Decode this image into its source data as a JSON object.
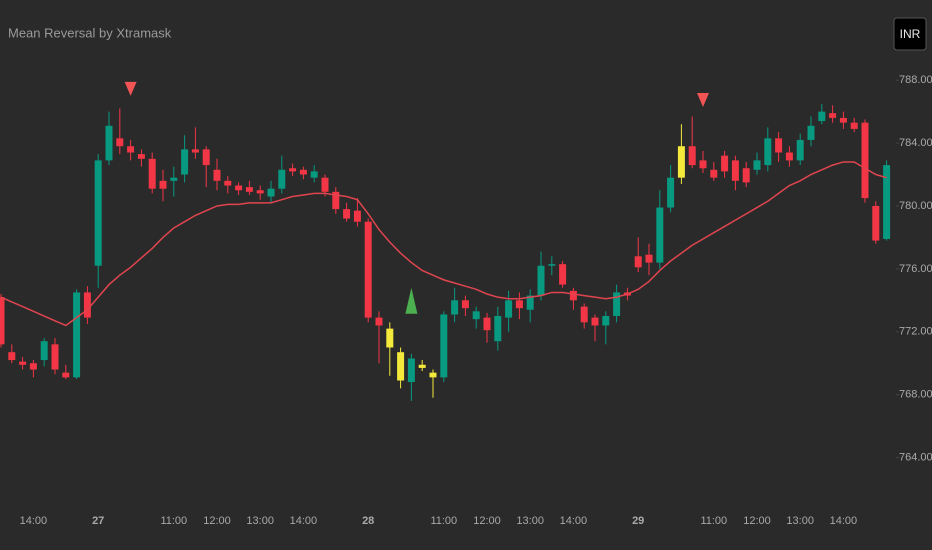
{
  "chart_data": {
    "type": "candlestick",
    "title": "Mean Reversal by Xtramask",
    "categories": [
      null,
      null,
      null,
      "14:00",
      null,
      null,
      null,
      null,
      null,
      "27",
      null,
      null,
      null,
      null,
      null,
      null,
      "11:00",
      null,
      null,
      null,
      "12:00",
      null,
      null,
      null,
      "13:00",
      null,
      null,
      null,
      "14:00",
      null,
      null,
      null,
      null,
      null,
      "28",
      null,
      null,
      null,
      null,
      null,
      null,
      "11:00",
      null,
      null,
      null,
      "12:00",
      null,
      null,
      null,
      "13:00",
      null,
      null,
      null,
      "14:00",
      null,
      null,
      null,
      null,
      null,
      "29",
      null,
      null,
      null,
      null,
      null,
      null,
      "11:00",
      null,
      null,
      null,
      "12:00",
      null,
      null,
      null,
      "13:00",
      null,
      null,
      null,
      "14:00",
      null,
      null,
      null,
      null
    ],
    "open": [
      774.2,
      770.7,
      770.1,
      770.0,
      770.2,
      771.2,
      769.4,
      769.1,
      774.5,
      776.2,
      782.9,
      784.3,
      783.8,
      783.3,
      783.0,
      781.6,
      781.6,
      782.0,
      783.6,
      783.6,
      782.3,
      781.6,
      781.3,
      781.2,
      781.0,
      780.6,
      781.1,
      782.4,
      782.3,
      781.8,
      781.8,
      780.9,
      779.8,
      779.7,
      779.0,
      772.9,
      772.2,
      770.7,
      768.8,
      769.9,
      769.4,
      769.1,
      773.1,
      774.0,
      772.8,
      772.9,
      771.4,
      772.9,
      774.0,
      773.4,
      774.3,
      776.2,
      776.3,
      774.6,
      773.6,
      772.9,
      772.4,
      773.0,
      774.5,
      776.8,
      776.9,
      776.4,
      779.9,
      781.8,
      783.8,
      782.9,
      782.3,
      783.2,
      782.9,
      782.4,
      782.3,
      782.6,
      784.3,
      783.4,
      782.9,
      784.2,
      785.4,
      785.9,
      785.6,
      785.3,
      785.3,
      780.0,
      777.9
    ],
    "high": [
      774.4,
      771.2,
      770.4,
      770.2,
      771.6,
      771.6,
      769.9,
      774.7,
      774.9,
      783.3,
      786.0,
      786.2,
      784.2,
      783.6,
      783.4,
      782.3,
      782.5,
      784.5,
      785.0,
      783.8,
      783.0,
      781.9,
      781.5,
      781.6,
      781.3,
      781.6,
      783.2,
      782.7,
      782.5,
      782.6,
      782.0,
      781.2,
      780.2,
      780.5,
      779.2,
      773.3,
      772.6,
      771.0,
      770.6,
      770.2,
      769.6,
      773.3,
      774.8,
      774.3,
      773.6,
      773.2,
      773.6,
      774.6,
      774.5,
      774.7,
      777.1,
      776.8,
      776.5,
      774.8,
      773.8,
      773.1,
      773.3,
      775.0,
      774.8,
      778.0,
      777.6,
      781.0,
      782.6,
      785.2,
      785.7,
      783.5,
      782.8,
      783.5,
      783.2,
      782.8,
      783.4,
      785.0,
      784.7,
      783.8,
      784.6,
      785.7,
      786.5,
      786.4,
      786.0,
      785.6,
      785.5,
      780.3,
      782.9
    ],
    "low": [
      771.0,
      770.0,
      769.6,
      769.1,
      769.8,
      769.3,
      769.0,
      769.0,
      772.5,
      774.8,
      782.6,
      783.3,
      782.9,
      782.5,
      780.8,
      780.3,
      780.6,
      781.5,
      783.0,
      781.2,
      781.0,
      780.8,
      780.7,
      780.7,
      780.4,
      780.2,
      780.8,
      781.9,
      781.7,
      781.5,
      780.6,
      779.5,
      779.0,
      778.7,
      772.6,
      770.0,
      769.2,
      768.4,
      767.6,
      769.5,
      767.8,
      768.8,
      772.6,
      773.0,
      772.2,
      771.3,
      770.8,
      772.0,
      772.8,
      772.6,
      774.0,
      775.6,
      774.8,
      773.4,
      772.2,
      771.4,
      771.2,
      772.6,
      774.0,
      775.8,
      775.6,
      776.0,
      779.6,
      781.4,
      782.4,
      782.1,
      781.6,
      781.8,
      781.0,
      781.2,
      782.0,
      782.2,
      782.8,
      782.5,
      782.6,
      783.8,
      785.2,
      785.3,
      784.9,
      784.7,
      780.2,
      777.6,
      777.8
    ],
    "close": [
      771.2,
      770.2,
      769.9,
      769.6,
      771.4,
      769.6,
      769.1,
      774.5,
      772.9,
      782.9,
      785.1,
      783.8,
      783.4,
      783.0,
      781.1,
      781.1,
      781.8,
      783.6,
      783.4,
      782.6,
      781.6,
      781.3,
      781.0,
      780.9,
      780.8,
      781.1,
      782.3,
      782.2,
      782.0,
      782.2,
      780.9,
      779.8,
      779.2,
      779.0,
      772.9,
      772.4,
      771.0,
      768.9,
      770.3,
      769.7,
      769.1,
      773.1,
      774.0,
      773.5,
      773.3,
      772.1,
      773.0,
      774.0,
      773.5,
      774.3,
      776.2,
      776.3,
      775.0,
      774.0,
      772.6,
      772.4,
      773.0,
      774.5,
      774.3,
      776.1,
      776.4,
      779.9,
      781.8,
      783.8,
      782.6,
      782.4,
      781.8,
      782.2,
      781.6,
      781.5,
      782.9,
      784.3,
      783.4,
      782.9,
      784.2,
      785.1,
      786.0,
      785.6,
      785.3,
      784.9,
      780.5,
      777.8,
      782.6
    ],
    "up_color": "#089981",
    "down_color": "#f23645",
    "highlight_color": "#f5e93b",
    "highlighted": [
      36,
      37,
      39,
      40,
      63
    ],
    "ma": [
      774.2,
      773.9,
      773.6,
      773.3,
      773.0,
      772.7,
      772.4,
      772.9,
      773.4,
      774.2,
      775.0,
      775.6,
      776.1,
      776.7,
      777.3,
      778.0,
      778.6,
      779.0,
      779.4,
      779.7,
      780.0,
      780.1,
      780.1,
      780.2,
      780.2,
      780.2,
      780.4,
      780.6,
      780.7,
      780.8,
      780.8,
      780.7,
      780.6,
      780.4,
      779.5,
      778.5,
      777.7,
      777.0,
      776.4,
      775.9,
      775.6,
      775.3,
      775.1,
      774.9,
      774.7,
      774.4,
      774.2,
      774.1,
      774.1,
      774.2,
      774.3,
      774.5,
      774.5,
      774.4,
      774.3,
      774.2,
      774.1,
      774.2,
      774.4,
      774.7,
      775.2,
      775.9,
      776.5,
      777.0,
      777.5,
      777.9,
      778.3,
      778.7,
      779.1,
      779.5,
      779.9,
      780.3,
      780.8,
      781.3,
      781.6,
      782.0,
      782.3,
      782.6,
      782.8,
      782.8,
      782.4,
      782.0,
      781.8
    ],
    "ma_color": "#e0454f",
    "sell_signals": [
      12,
      65
    ],
    "sell_color": "#f05454",
    "buy_signals": [
      38
    ],
    "buy_color": "#4caf50",
    "ylim": [
      761.3,
      793.1
    ],
    "yticks": [
      {
        "value": 764,
        "label": "764.00"
      },
      {
        "value": 768,
        "label": "768.00"
      },
      {
        "value": 772,
        "label": "772.00"
      },
      {
        "value": 776,
        "label": "776.00"
      },
      {
        "value": 780,
        "label": "780.00"
      },
      {
        "value": 784,
        "label": "784.00"
      },
      {
        "value": 788,
        "label": "788.00"
      }
    ]
  },
  "badge": "INR"
}
